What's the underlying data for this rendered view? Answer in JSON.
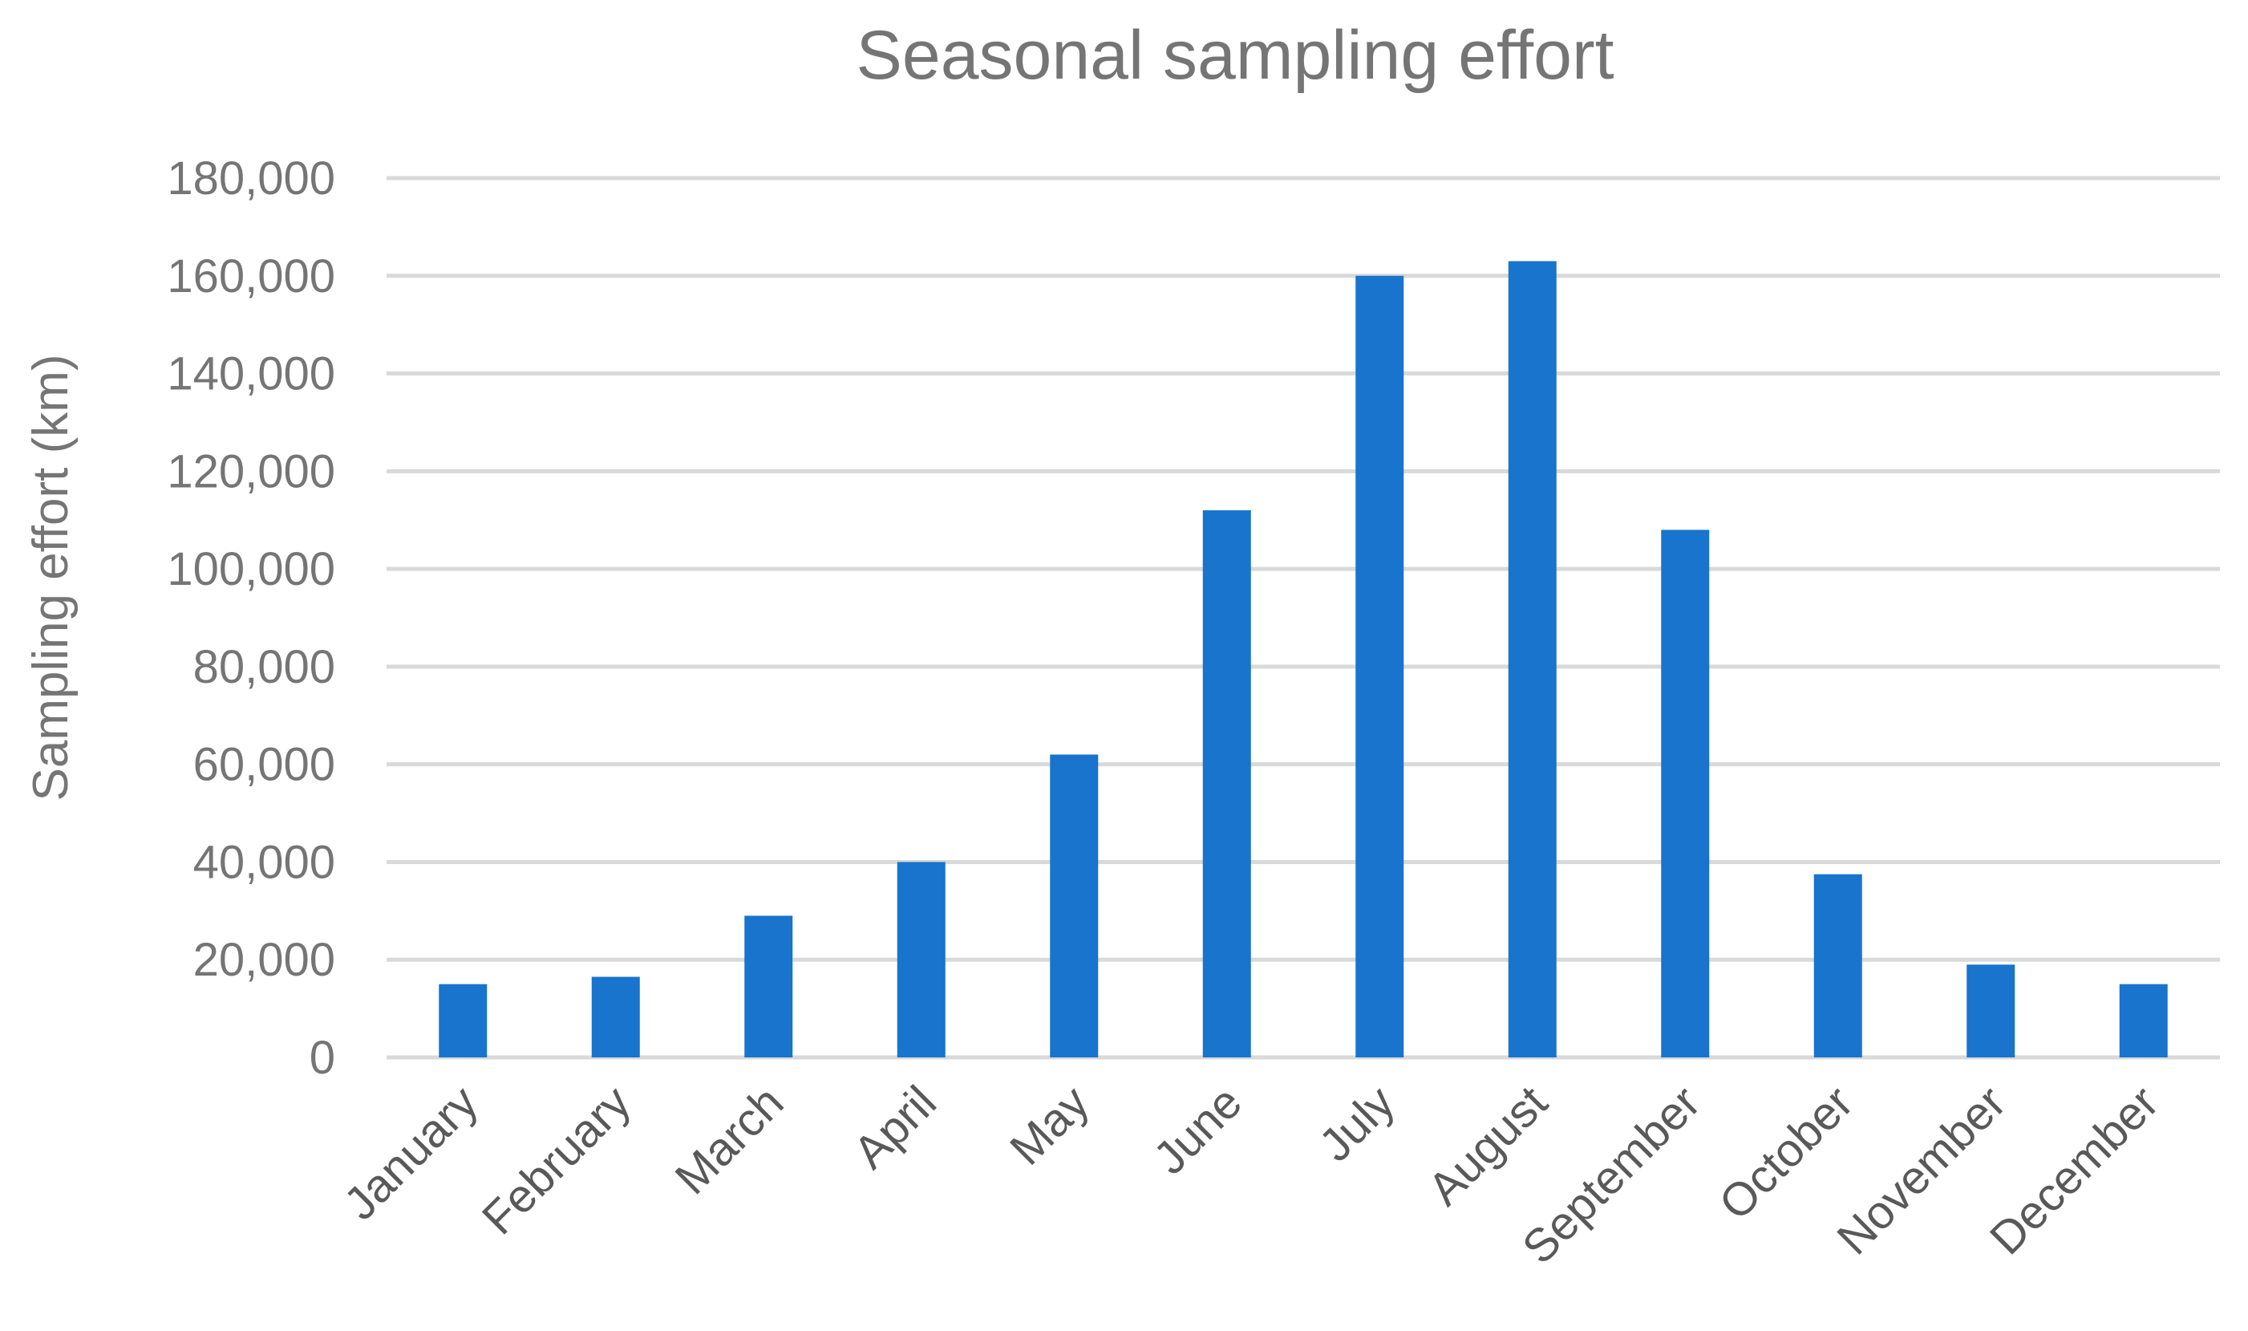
{
  "chart_data": {
    "type": "bar",
    "title": "Seasonal sampling effort",
    "xlabel": "",
    "ylabel": "Sampling effort (km)",
    "categories": [
      "January",
      "February",
      "March",
      "April",
      "May",
      "June",
      "July",
      "August",
      "September",
      "October",
      "November",
      "December"
    ],
    "values": [
      15000,
      16500,
      29000,
      40000,
      62000,
      112000,
      160000,
      163000,
      108000,
      37500,
      19000,
      15000
    ],
    "ylim": [
      0,
      180000
    ],
    "yticks": [
      0,
      20000,
      40000,
      60000,
      80000,
      100000,
      120000,
      140000,
      160000,
      180000
    ],
    "ytick_labels": [
      "0",
      "20,000",
      "40,000",
      "60,000",
      "80,000",
      "100,000",
      "120,000",
      "140,000",
      "160,000",
      "180,000"
    ],
    "grid": true,
    "legend": "none",
    "colors": {
      "bar": "#1874CD",
      "grid": "#D9D9D9",
      "text": "#757575"
    }
  }
}
